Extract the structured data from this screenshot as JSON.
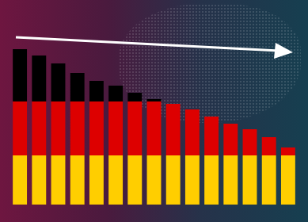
{
  "chart_data": {
    "type": "bar",
    "categories": [
      null,
      null,
      null,
      null,
      null,
      null,
      null,
      null,
      null,
      null,
      null,
      null,
      null,
      null,
      null
    ],
    "values": [
      196,
      188,
      178,
      166,
      156,
      150,
      141,
      133,
      127,
      120,
      111,
      102,
      95,
      85,
      72
    ],
    "ylim": [
      0,
      200
    ],
    "grid": false,
    "tick_labels": false
  }
}
